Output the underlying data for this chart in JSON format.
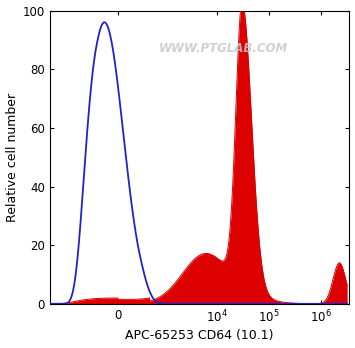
{
  "title": "",
  "xlabel": "APC-65253 CD64 (10.1)",
  "ylabel": "Relative cell number",
  "ylim": [
    0,
    100
  ],
  "yticks": [
    0,
    20,
    40,
    60,
    80,
    100
  ],
  "watermark": "WWW.PTGLAB.COM",
  "background_color": "#ffffff",
  "blue_color": "#2222cc",
  "red_color": "#dd0000",
  "red_fill_color": "#dd0000",
  "linthresh": 300,
  "linscale": 0.35
}
